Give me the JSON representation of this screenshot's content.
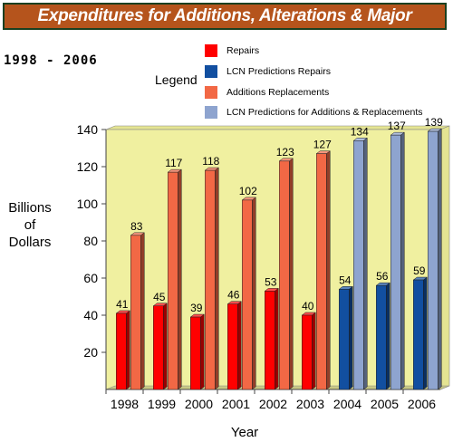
{
  "header": {
    "title": "Expenditures for Additions, Alterations & Major",
    "subtitle": "1998 - 2006",
    "legend_title": "Legend"
  },
  "legend": [
    {
      "label": "Repairs",
      "color": "#ff0000"
    },
    {
      "label": "LCN Predictions Repairs",
      "color": "#124fa0"
    },
    {
      "label": "Additions Replacements",
      "color": "#f26845"
    },
    {
      "label": "LCN Predictions for Additions & Replacements",
      "color": "#8ea4cf"
    }
  ],
  "chart_data": {
    "type": "bar",
    "title": "Expenditures for Additions, Alterations & Major",
    "subtitle": "1998 - 2006",
    "xlabel": "Year",
    "ylabel_lines": [
      "Billions",
      "of",
      "Dollars"
    ],
    "ylim": [
      0,
      140
    ],
    "yticks": [
      20,
      40,
      60,
      80,
      100,
      120,
      140
    ],
    "grid": false,
    "legend_position": "top",
    "categories": [
      "1998",
      "1999",
      "2000",
      "2001",
      "2002",
      "2003",
      "2004",
      "2005",
      "2006"
    ],
    "series": [
      {
        "name": "Repairs",
        "color": "#ff0000",
        "values": [
          41,
          45,
          39,
          46,
          53,
          40,
          null,
          null,
          null
        ]
      },
      {
        "name": "Additions Replacements",
        "color": "#f26845",
        "values": [
          83,
          117,
          118,
          102,
          123,
          127,
          null,
          null,
          null
        ]
      },
      {
        "name": "LCN Predictions Repairs",
        "color": "#124fa0",
        "values": [
          null,
          null,
          null,
          null,
          null,
          null,
          54,
          56,
          59
        ]
      },
      {
        "name": "LCN Predictions for Additions & Replacements",
        "color": "#8ea4cf",
        "values": [
          null,
          null,
          null,
          null,
          null,
          null,
          134,
          137,
          139
        ]
      }
    ],
    "colors": {
      "plot_background": "#f0f0a0",
      "floor": "#c8c884",
      "wall": "#e4e492"
    }
  }
}
